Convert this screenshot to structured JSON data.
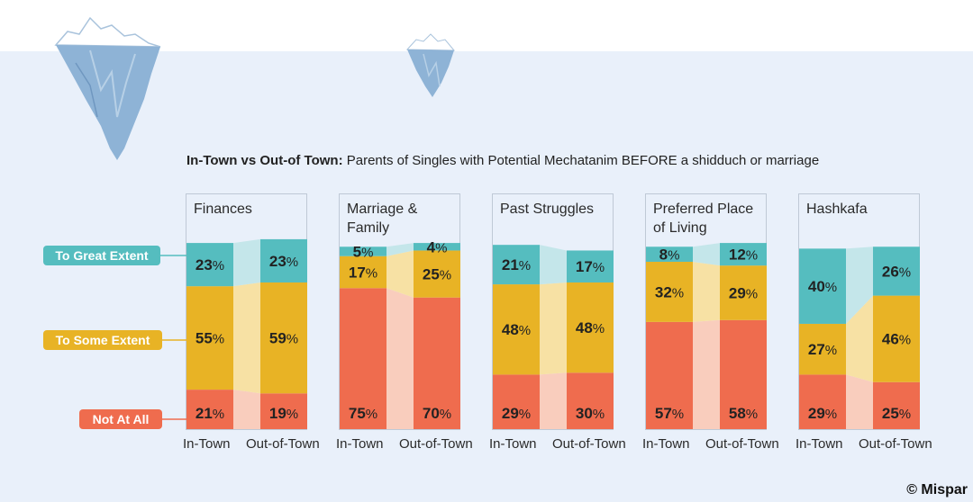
{
  "title_bold": "In-Town vs Out-of Town:",
  "title_rest": " Parents of Singles with Potential Mechatanim BEFORE a shidduch or marriage",
  "credit": "© Mispar",
  "colors": {
    "great": "#55bdbf",
    "some": "#e8b325",
    "none": "#ef6c4e",
    "great_link": "#c4e6ea",
    "some_link": "#f7e1a4",
    "none_link": "#f9cdbd"
  },
  "chart_data": {
    "type": "bar",
    "stacked": true,
    "categories": [
      "In-Town",
      "Out-of-Town"
    ],
    "legend": [
      "To Great Extent",
      "To Some Extent",
      "Not At All"
    ],
    "panels": [
      {
        "title": [
          "Finances"
        ],
        "great": [
          23,
          23
        ],
        "some": [
          55,
          59
        ],
        "none": [
          21,
          19
        ]
      },
      {
        "title": [
          "Marriage &",
          "Family"
        ],
        "great": [
          5,
          4
        ],
        "some": [
          17,
          25
        ],
        "none": [
          75,
          70
        ]
      },
      {
        "title": [
          "Past Struggles"
        ],
        "great": [
          21,
          17
        ],
        "some": [
          48,
          48
        ],
        "none": [
          29,
          30
        ]
      },
      {
        "title": [
          "Preferred Place",
          "of Living"
        ],
        "great": [
          8,
          12
        ],
        "some": [
          32,
          29
        ],
        "none": [
          57,
          58
        ]
      },
      {
        "title": [
          "Hashkafa"
        ],
        "great": [
          40,
          26
        ],
        "some": [
          27,
          46
        ],
        "none": [
          29,
          25
        ]
      }
    ]
  }
}
